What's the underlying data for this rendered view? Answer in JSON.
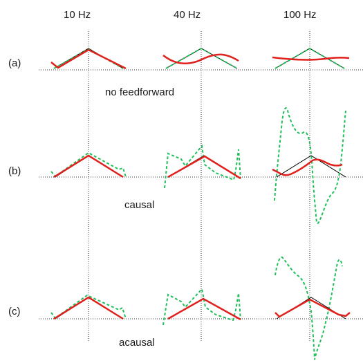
{
  "columns": [
    "10 Hz",
    "40 Hz",
    "100 Hz"
  ],
  "rows": [
    {
      "label": "(a)",
      "caption": "no feedforward"
    },
    {
      "label": "(b)",
      "caption": "causal"
    },
    {
      "label": "(c)",
      "caption": "acausal"
    }
  ],
  "colors": {
    "reference": "#000000",
    "feedback": "#e0201c",
    "feedforward": "#1fbf5a",
    "grid": "#333333"
  }
}
